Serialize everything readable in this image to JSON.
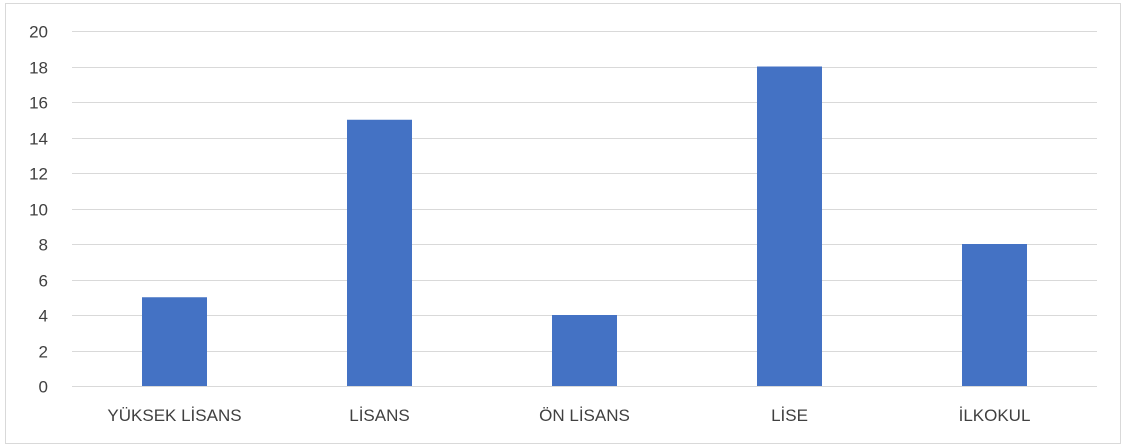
{
  "chart_data": {
    "type": "bar",
    "title": "",
    "xlabel": "",
    "ylabel": "",
    "categories": [
      "YÜKSEK LİSANS",
      "LİSANS",
      "ÖN LİSANS",
      "LİSE",
      "İLKOKUL"
    ],
    "values": [
      5,
      15,
      4,
      18,
      8
    ],
    "ylim": [
      0,
      20
    ],
    "yticks": [
      "0",
      "2",
      "4",
      "6",
      "8",
      "10",
      "12",
      "14",
      "16",
      "18",
      "20"
    ],
    "grid": true,
    "legend": "none",
    "colors": {
      "bar": "#4472c4",
      "grid": "#d9d9d9",
      "axis": "#d9d9d9",
      "text": "#404040"
    }
  }
}
